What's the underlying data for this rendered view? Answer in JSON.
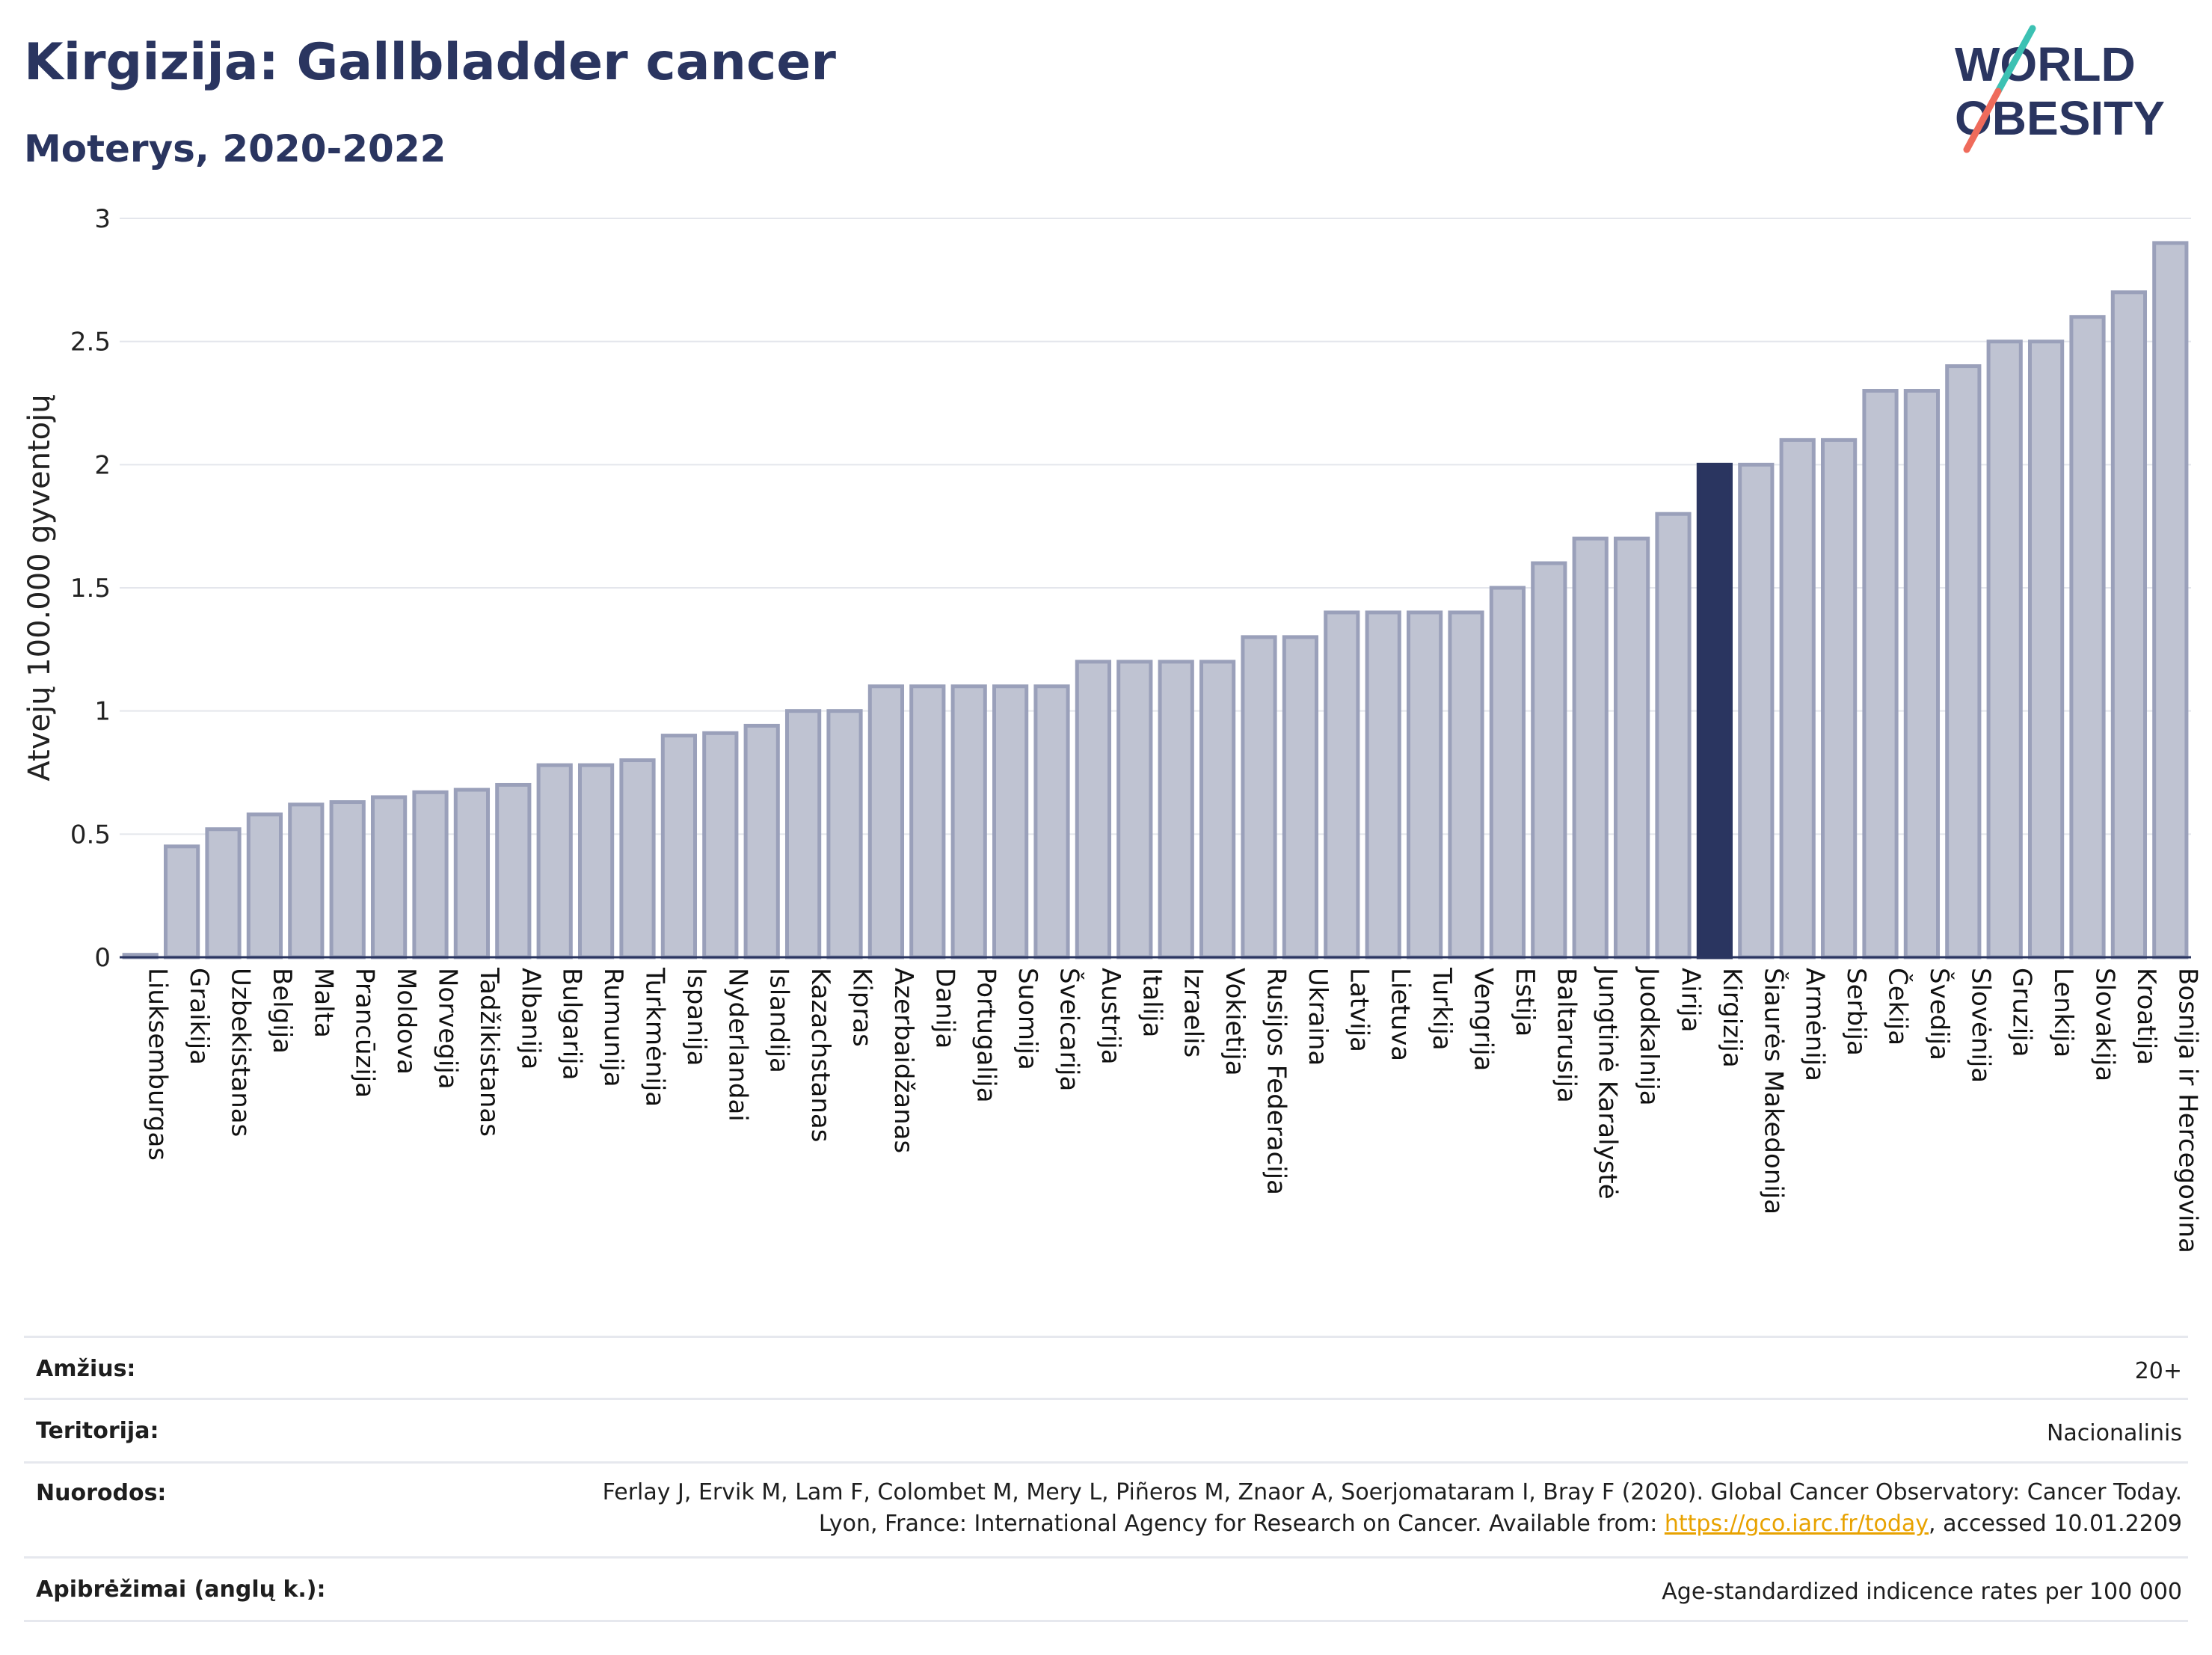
{
  "header": {
    "title": "Kirgizija: Gallbladder cancer",
    "subtitle": "Moterys, 2020-2022"
  },
  "logo": {
    "line1": "WORLD",
    "line2": "OBESITY",
    "colors": {
      "text": "#2a3560",
      "slash_top": "#3cc1b3",
      "slash_bottom": "#ef6b5b"
    }
  },
  "chart_data": {
    "type": "bar",
    "ylabel": "Atvejų 100.000 gyventojų",
    "xlabel": "",
    "ylim": [
      0,
      3
    ],
    "yticks": [
      "0",
      "0.5",
      "1",
      "1.5",
      "2",
      "2.5",
      "3"
    ],
    "grid": true,
    "highlight": "Kirgizija",
    "colors": {
      "bar": "#bfc3d2",
      "bar_edge": "#9aa0ba",
      "highlight": "#2a3560",
      "grid": "#e4e6ec"
    },
    "categories": [
      "Liuksemburgas",
      "Graikija",
      "Uzbekistanas",
      "Belgija",
      "Malta",
      "Prancūzija",
      "Moldova",
      "Norvegija",
      "Tadžikistanas",
      "Albanija",
      "Bulgarija",
      "Rumunija",
      "Turkmėnija",
      "Ispanija",
      "Nyderlandai",
      "Islandija",
      "Kazachstanas",
      "Kipras",
      "Azerbaidžanas",
      "Danija",
      "Portugalija",
      "Suomija",
      "Šveicarija",
      "Austrija",
      "Italija",
      "Izraelis",
      "Vokietija",
      "Rusijos Federacija",
      "Ukraina",
      "Latvija",
      "Lietuva",
      "Turkija",
      "Vengrija",
      "Estija",
      "Baltarusija",
      "Jungtinė Karalystė",
      "Juodkalnija",
      "Airija",
      "Kirgizija",
      "Šiaurės Makedonija",
      "Armėnija",
      "Serbija",
      "Čekija",
      "Švedija",
      "Slovėnija",
      "Gruzija",
      "Lenkija",
      "Slovakija",
      "Kroatija",
      "Bosnija ir Hercegovina"
    ],
    "values": [
      0.01,
      0.45,
      0.52,
      0.58,
      0.62,
      0.63,
      0.65,
      0.67,
      0.68,
      0.7,
      0.78,
      0.78,
      0.8,
      0.9,
      0.91,
      0.94,
      1.0,
      1.0,
      1.1,
      1.1,
      1.1,
      1.1,
      1.1,
      1.2,
      1.2,
      1.2,
      1.2,
      1.3,
      1.3,
      1.4,
      1.4,
      1.4,
      1.4,
      1.5,
      1.6,
      1.7,
      1.7,
      1.8,
      2.0,
      2.0,
      2.1,
      2.1,
      2.3,
      2.3,
      2.4,
      2.5,
      2.5,
      2.6,
      2.7,
      2.9
    ]
  },
  "footer": {
    "age_label": "Amžius:",
    "age_value": "20+",
    "territory_label": "Teritorija:",
    "territory_value": "Nacionalinis",
    "refs_label": "Nuorodos:",
    "refs_text_before": "Ferlay J, Ervik M, Lam F, Colombet M, Mery L, Piñeros M, Znaor A, Soerjomataram I, Bray F (2020). Global Cancer Observatory: Cancer Today. Lyon, France: International Agency for Research on Cancer. Available from: ",
    "refs_link": "https://gco.iarc.fr/today",
    "refs_text_after": ", accessed 10.01.2209",
    "defs_label": "Apibrėžimai (anglų k.):",
    "defs_value": "Age-standardized indicence rates per 100 000"
  }
}
